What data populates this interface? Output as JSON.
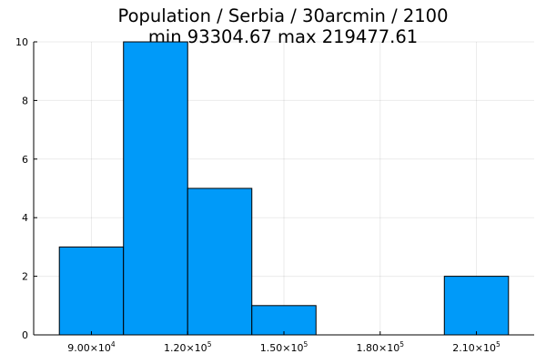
{
  "title": {
    "line1": "Population / Serbia / 30arcmin / 2100",
    "line2": "min 93304.67  max 219477.61"
  },
  "colors": {
    "bar_fill": "#009af9",
    "bar_stroke": "#000000",
    "axis": "#000000",
    "background": "#ffffff"
  },
  "chart_data": {
    "type": "bar",
    "subtype": "histogram",
    "bin_edges": [
      80000,
      100000,
      120000,
      140000,
      160000,
      180000,
      200000,
      220000
    ],
    "values": [
      3,
      10,
      5,
      1,
      0,
      0,
      2
    ],
    "xlim": [
      72000,
      228000
    ],
    "ylim": [
      0,
      10
    ],
    "xticks": [
      {
        "value": 90000,
        "mantissa": "9.00×10",
        "exponent": "4"
      },
      {
        "value": 120000,
        "mantissa": "1.20×10",
        "exponent": "5"
      },
      {
        "value": 150000,
        "mantissa": "1.50×10",
        "exponent": "5"
      },
      {
        "value": 180000,
        "mantissa": "1.80×10",
        "exponent": "5"
      },
      {
        "value": 210000,
        "mantissa": "2.10×10",
        "exponent": "5"
      }
    ],
    "yticks": [
      {
        "value": 0,
        "label": "0"
      },
      {
        "value": 2,
        "label": "2"
      },
      {
        "value": 4,
        "label": "4"
      },
      {
        "value": 6,
        "label": "6"
      },
      {
        "value": 8,
        "label": "8"
      },
      {
        "value": 10,
        "label": "10"
      }
    ],
    "grid": true,
    "legend": "none",
    "xlabel": "",
    "ylabel": ""
  }
}
